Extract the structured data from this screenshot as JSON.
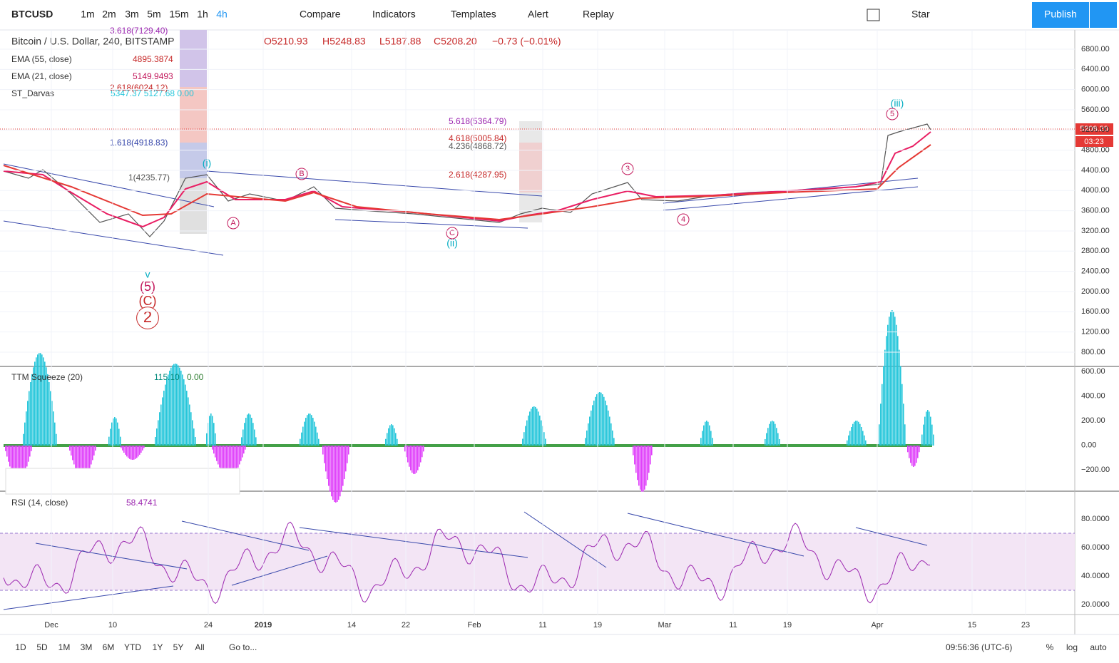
{
  "toolbar": {
    "symbol": "BTCUSD",
    "intervals": [
      "1m",
      "2m",
      "3m",
      "5m",
      "15m",
      "1h",
      "4h"
    ],
    "buttons": [
      "Compare",
      "Indicators",
      "Templates",
      "Alert",
      "Replay"
    ],
    "star": "Star",
    "publish": "Publish"
  },
  "legend": {
    "title": "Bitcoin / U.S. Dollar, 240, BITSTAMP",
    "open": "O5210.93",
    "high": "H5248.83",
    "low": "L5187.88",
    "close": "C5208.20",
    "change": "−0.73 (−0.01%)",
    "indicators": [
      {
        "name": "EMA (55, close)",
        "value": "4895.3874"
      },
      {
        "name": "EMA (21, close)",
        "value": "5149.9493"
      },
      {
        "name": "ST_Darvas",
        "value": "5347.37  5127.68  0.00"
      }
    ]
  },
  "annotations": {
    "fib_left": [
      "3.618(7129.40)",
      "2.618(6024.12)",
      "1.618(4918.83)",
      "1(4235.77)"
    ],
    "fib_right": [
      "5.618(5364.79)",
      "4.618(5005.84)",
      "4.236(4868.72)",
      "2.618(4287.95)"
    ],
    "waves": [
      "(iii)",
      "(ii)",
      "(i)",
      "v",
      "(5)",
      "(C)",
      "2",
      "A",
      "B",
      "C",
      "3",
      "4",
      "5"
    ]
  },
  "price_axis": {
    "labels": [
      "6800.00",
      "6400.00",
      "6000.00",
      "5600.00",
      "5200.00",
      "4800.00",
      "4400.00",
      "4000.00",
      "3600.00",
      "3200.00",
      "2800.00",
      "2400.00",
      "2000.00",
      "1600.00",
      "1200.00",
      "800.00"
    ],
    "last": "5208.20",
    "countdown": "03:23"
  },
  "ttm": {
    "name": "TTM Squeeze (20)",
    "values": [
      "115.10",
      "0.00"
    ],
    "axis": [
      "600.00",
      "400.00",
      "200.00",
      "0.00",
      "−200.00"
    ]
  },
  "rsi": {
    "name": "RSI (14, close)",
    "value": "58.4741",
    "axis": [
      "80.0000",
      "60.0000",
      "40.0000",
      "20.0000"
    ]
  },
  "time_axis": [
    "Dec",
    "10",
    "24",
    "2019",
    "14",
    "22",
    "Feb",
    "11",
    "19",
    "Mar",
    "11",
    "19",
    "Apr",
    "15",
    "23"
  ],
  "bottom": {
    "ranges": [
      "1D",
      "5D",
      "1M",
      "3M",
      "6M",
      "YTD",
      "1Y",
      "5Y",
      "All"
    ],
    "goto": "Go to...",
    "clock": "09:56:36 (UTC-6)",
    "options": [
      "%",
      "log",
      "auto"
    ]
  }
}
